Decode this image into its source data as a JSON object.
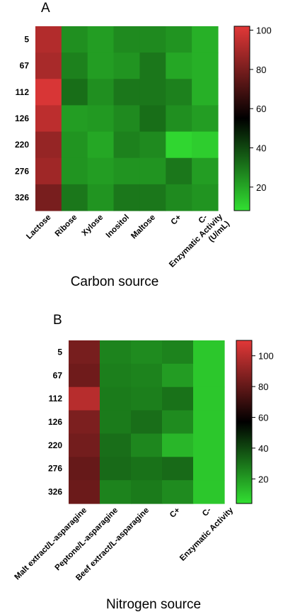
{
  "chart_data": [
    {
      "type": "heatmap",
      "panel": "A",
      "xlabel": "Carbon source",
      "y_categories": [
        "5",
        "67",
        "112",
        "126",
        "220",
        "276",
        "326"
      ],
      "x_categories": [
        "Lactose",
        "Ribose",
        "Xylose",
        "Inositol",
        "Maltose",
        "C+",
        "C-"
      ],
      "values": [
        [
          92,
          25,
          22,
          26,
          26,
          24,
          18
        ],
        [
          90,
          28,
          22,
          24,
          30,
          20,
          18
        ],
        [
          100,
          32,
          25,
          30,
          30,
          28,
          18
        ],
        [
          94,
          22,
          23,
          26,
          32,
          25,
          22
        ],
        [
          86,
          24,
          20,
          28,
          26,
          10,
          12
        ],
        [
          88,
          24,
          22,
          24,
          24,
          30,
          22
        ],
        [
          80,
          30,
          24,
          30,
          30,
          26,
          24
        ]
      ],
      "colorbar": {
        "label": "Enzymatic Activity\n(U/mL)",
        "ticks": [
          20,
          40,
          60,
          80,
          100
        ],
        "range": [
          8,
          102
        ]
      },
      "colors": {
        "low": "#32e032",
        "mid": "#000000",
        "high": "#e23838"
      }
    },
    {
      "type": "heatmap",
      "panel": "B",
      "xlabel": "Nitrogen source",
      "y_categories": [
        "5",
        "67",
        "112",
        "126",
        "220",
        "276",
        "326"
      ],
      "x_categories": [
        "Malt extract/L-asparagine",
        "Peptone/L-asparagine",
        "Beef extract/L-asparagine",
        "C+",
        "C-"
      ],
      "values": [
        [
          85,
          26,
          24,
          26,
          10
        ],
        [
          83,
          27,
          26,
          20,
          10
        ],
        [
          100,
          28,
          27,
          30,
          10
        ],
        [
          86,
          28,
          31,
          24,
          10
        ],
        [
          84,
          31,
          25,
          14,
          10
        ],
        [
          81,
          32,
          30,
          32,
          10
        ],
        [
          82,
          26,
          28,
          24,
          10
        ]
      ],
      "colorbar": {
        "label": "Enzymatic Activity",
        "ticks": [
          20,
          40,
          60,
          80,
          100
        ],
        "range": [
          4,
          110
        ]
      },
      "colors": {
        "low": "#32e032",
        "mid": "#000000",
        "high": "#e23838"
      }
    }
  ]
}
